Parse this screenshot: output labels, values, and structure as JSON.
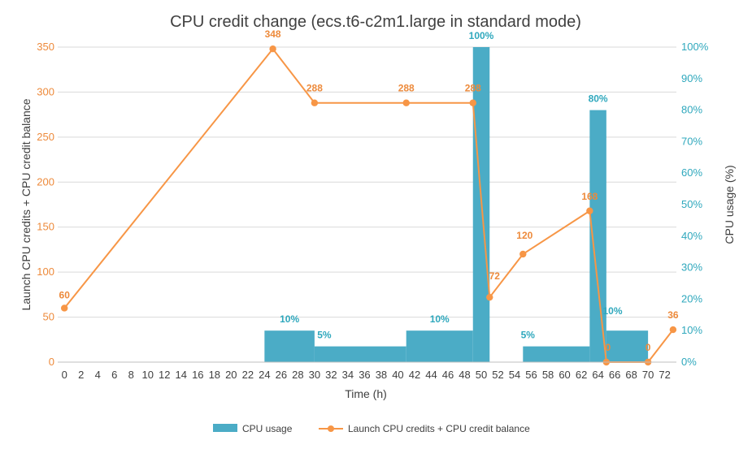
{
  "chart_data": {
    "type": "bar",
    "title": "CPU credit change (ecs.t6-c2m1.large in standard mode)",
    "xlabel": "Time (h)",
    "ylabel_left": "Launch CPU credits + CPU credit balance",
    "ylabel_right": "CPU usage (%)",
    "x_ticks": [
      "0",
      "2",
      "4",
      "6",
      "8",
      "10",
      "12",
      "14",
      "16",
      "18",
      "20",
      "22",
      "24",
      "26",
      "28",
      "30",
      "32",
      "34",
      "36",
      "38",
      "40",
      "42",
      "44",
      "46",
      "48",
      "50",
      "52",
      "54",
      "56",
      "58",
      "60",
      "62",
      "64",
      "66",
      "68",
      "70",
      "72"
    ],
    "ylim_left": [
      0,
      350
    ],
    "y_ticks_left": [
      "0",
      "50",
      "100",
      "150",
      "200",
      "250",
      "300",
      "350"
    ],
    "ylim_right": [
      0,
      100
    ],
    "y_ticks_right": [
      "0%",
      "10%",
      "20%",
      "30%",
      "40%",
      "50%",
      "60%",
      "70%",
      "80%",
      "90%",
      "100%"
    ],
    "grid": "horizontal",
    "legend_position": "bottom",
    "colors": {
      "bar": "#4bacc6",
      "line": "#f79646",
      "bar_label": "#2fa8bd",
      "line_label": "#ed8a3b"
    },
    "series": [
      {
        "name": "CPU usage",
        "type": "bar",
        "axis": "right",
        "segments": [
          {
            "x_start": 24,
            "x_end": 30,
            "value": 10,
            "label": "10%"
          },
          {
            "x_start": 30,
            "x_end": 41,
            "value": 5,
            "label": "5%"
          },
          {
            "x_start": 41,
            "x_end": 49,
            "value": 10,
            "label": "10%"
          },
          {
            "x_start": 49,
            "x_end": 51,
            "value": 100,
            "label": "100%"
          },
          {
            "x_start": 55,
            "x_end": 63,
            "value": 5,
            "label": "5%"
          },
          {
            "x_start": 63,
            "x_end": 65,
            "value": 80,
            "label": "80%"
          },
          {
            "x_start": 65,
            "x_end": 70,
            "value": 10,
            "label": "10%"
          }
        ]
      },
      {
        "name": "Launch CPU credits + CPU credit balance",
        "type": "line",
        "axis": "left",
        "points": [
          {
            "x": 0,
            "y": 60,
            "label": "60"
          },
          {
            "x": 25,
            "y": 348,
            "label": "348"
          },
          {
            "x": 30,
            "y": 288,
            "label": "288"
          },
          {
            "x": 41,
            "y": 288,
            "label": "288"
          },
          {
            "x": 49,
            "y": 288,
            "label": "288"
          },
          {
            "x": 51,
            "y": 72,
            "label": "72"
          },
          {
            "x": 55,
            "y": 120,
            "label": "120"
          },
          {
            "x": 63,
            "y": 168,
            "label": "168"
          },
          {
            "x": 65,
            "y": 0,
            "label": "0"
          },
          {
            "x": 70,
            "y": 0,
            "label": "0"
          },
          {
            "x": 73,
            "y": 36,
            "label": "36"
          }
        ]
      }
    ]
  }
}
